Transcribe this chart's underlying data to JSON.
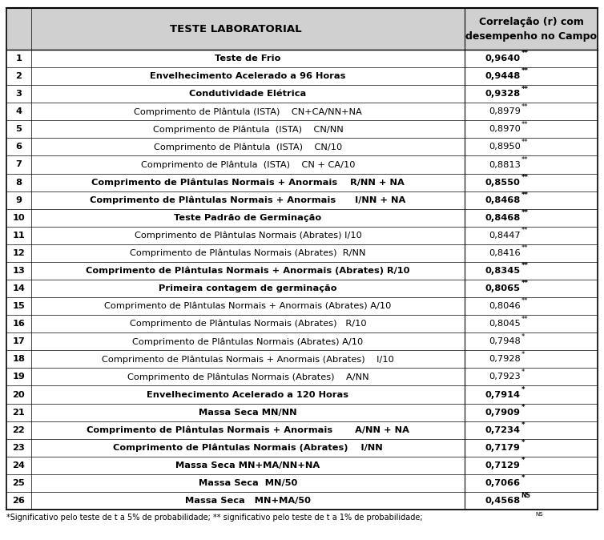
{
  "title": "TESTE LABORATORIAL",
  "col2_header": "Correlação (r) com\ndesempenho no Campo",
  "rows": [
    {
      "num": "1",
      "test": "Teste de Frio",
      "corr": "0,9640",
      "sig": "**",
      "bold": true
    },
    {
      "num": "2",
      "test": "Envelhecimento Acelerado a 96 Horas",
      "corr": "0,9448",
      "sig": "**",
      "bold": true
    },
    {
      "num": "3",
      "test": "Condutividade Elétrica",
      "corr": "0,9328",
      "sig": "**",
      "bold": true
    },
    {
      "num": "4",
      "test": "Comprimento de Plântula (ISTA)    CN+CA/NN+NA",
      "corr": "0,8979",
      "sig": "**",
      "bold": false
    },
    {
      "num": "5",
      "test": "Comprimento de Plântula  (ISTA)    CN/NN",
      "corr": "0,8970",
      "sig": "**",
      "bold": false
    },
    {
      "num": "6",
      "test": "Comprimento de Plântula  (ISTA)    CN/10",
      "corr": "0,8950",
      "sig": "**",
      "bold": false
    },
    {
      "num": "7",
      "test": "Comprimento de Plântula  (ISTA)    CN + CA/10",
      "corr": "0,8813",
      "sig": "**",
      "bold": false
    },
    {
      "num": "8",
      "test": "Comprimento de Plântulas Normais + Anormais    R/NN + NA",
      "corr": "0,8550",
      "sig": "**",
      "bold": true
    },
    {
      "num": "9",
      "test": "Comprimento de Plântulas Normais + Anormais      I/NN + NA",
      "corr": "0,8468",
      "sig": "**",
      "bold": true
    },
    {
      "num": "10",
      "test": "Teste Padrão de Germinação",
      "corr": "0,8468",
      "sig": "**",
      "bold": true
    },
    {
      "num": "11",
      "test": "Comprimento de Plântulas Normais (Abrates) I/10",
      "corr": "0,8447",
      "sig": "**",
      "bold": false
    },
    {
      "num": "12",
      "test": "Comprimento de Plântulas Normais (Abrates)  R/NN",
      "corr": "0,8416",
      "sig": "**",
      "bold": false
    },
    {
      "num": "13",
      "test": "Comprimento de Plântulas Normais + Anormais (Abrates) R/10",
      "corr": "0,8345",
      "sig": "**",
      "bold": true
    },
    {
      "num": "14",
      "test": "Primeira contagem de germinação",
      "corr": "0,8065",
      "sig": "**",
      "bold": true
    },
    {
      "num": "15",
      "test": "Comprimento de Plântulas Normais + Anormais (Abrates) A/10",
      "corr": "0,8046",
      "sig": "**",
      "bold": false
    },
    {
      "num": "16",
      "test": "Comprimento de Plântulas Normais (Abrates)   R/10",
      "corr": "0,8045",
      "sig": "**",
      "bold": false
    },
    {
      "num": "17",
      "test": "Comprimento de Plântulas Normais (Abrates) A/10",
      "corr": "0,7948",
      "sig": "*",
      "bold": false
    },
    {
      "num": "18",
      "test": "Comprimento de Plântulas Normais + Anormais (Abrates)    I/10",
      "corr": "0,7928",
      "sig": "*",
      "bold": false
    },
    {
      "num": "19",
      "test": "Comprimento de Plântulas Normais (Abrates)    A/NN",
      "corr": "0,7923",
      "sig": "*",
      "bold": false
    },
    {
      "num": "20",
      "test": "Envelhecimento Acelerado a 120 Horas",
      "corr": "0,7914",
      "sig": "*",
      "bold": true
    },
    {
      "num": "21",
      "test": "Massa Seca MN/NN",
      "corr": "0,7909",
      "sig": "*",
      "bold": true
    },
    {
      "num": "22",
      "test": "Comprimento de Plântulas Normais + Anormais       A/NN + NA",
      "corr": "0,7234",
      "sig": "*",
      "bold": true
    },
    {
      "num": "23",
      "test": "Comprimento de Plântulas Normais (Abrates)    I/NN",
      "corr": "0,7179",
      "sig": "*",
      "bold": true
    },
    {
      "num": "24",
      "test": "Massa Seca MN+MA/NN+NA",
      "corr": "0,7129",
      "sig": "*",
      "bold": true
    },
    {
      "num": "25",
      "test": "Massa Seca  MN/50",
      "corr": "0,7066",
      "sig": "*",
      "bold": true
    },
    {
      "num": "26",
      "test": "Massa Seca   MN+MA/50",
      "corr": "0,4568",
      "sig": "NS",
      "bold": true
    }
  ],
  "footnote": "*Significativo pelo teste de t a 5% de probabilidade; ** significativo pelo teste de t a 1% de probabilidade;",
  "footnote_sup": "NS",
  "bg_header": "#d0d0d0",
  "border_color": "#000000",
  "figsize": [
    7.54,
    6.74
  ],
  "dpi": 100
}
